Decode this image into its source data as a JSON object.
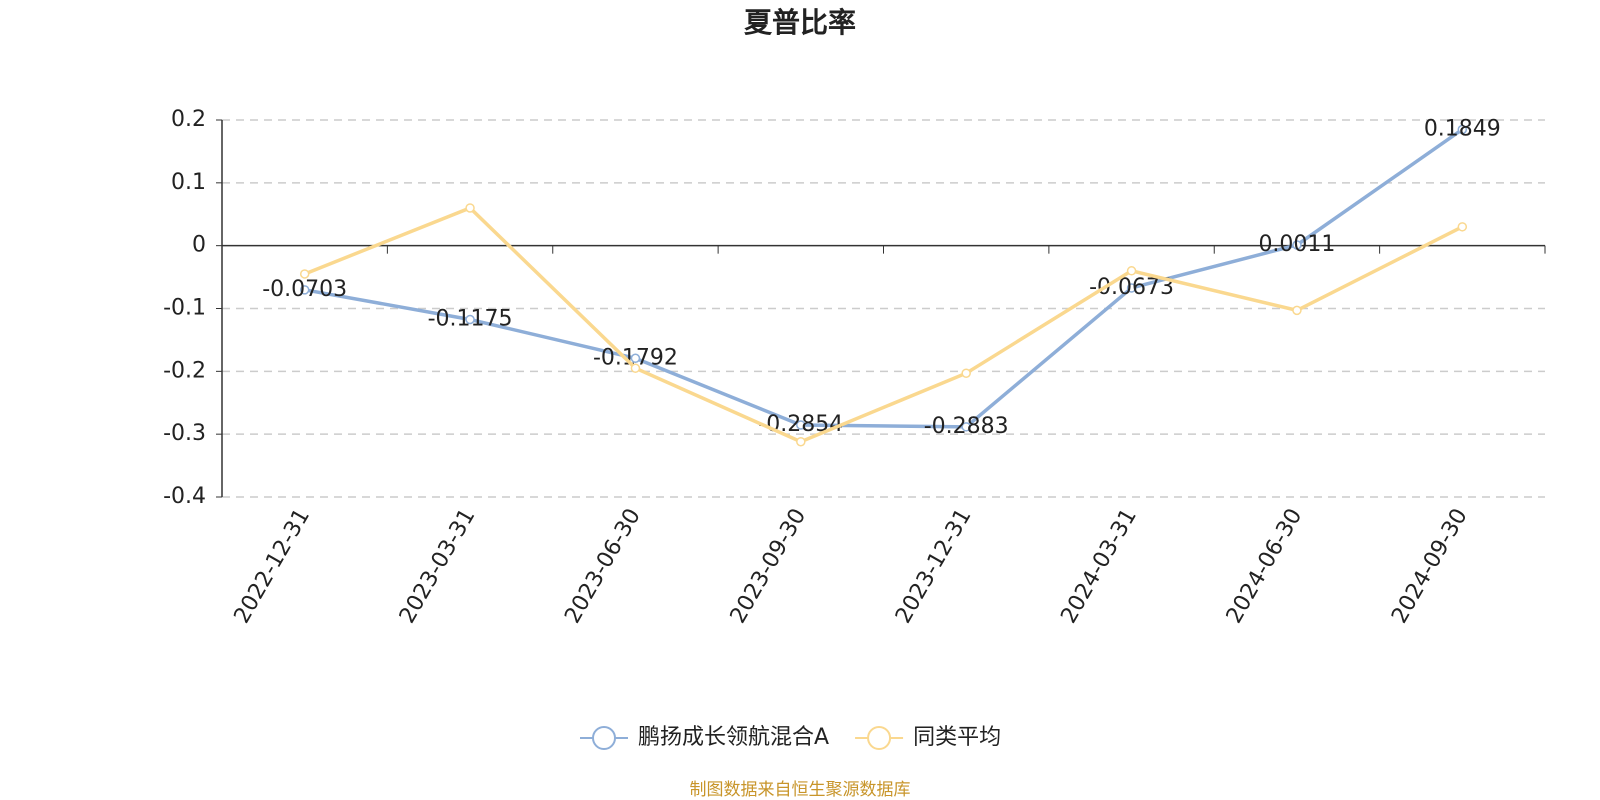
{
  "chart_data": {
    "type": "line",
    "title": "夏普比率",
    "categories": [
      "2022-12-31",
      "2023-03-31",
      "2023-06-30",
      "2023-09-30",
      "2023-12-31",
      "2024-03-31",
      "2024-06-30",
      "2024-09-30"
    ],
    "series": [
      {
        "name": "鹏扬成长领航混合A",
        "color": "#8eaed8",
        "values": [
          -0.0703,
          -0.1175,
          -0.1792,
          -0.2854,
          -0.2883,
          -0.0673,
          0.0011,
          0.1849
        ],
        "data_labels": true
      },
      {
        "name": "同类平均",
        "color": "#fad88f",
        "values": [
          -0.045,
          0.06,
          -0.195,
          -0.312,
          -0.203,
          -0.04,
          -0.103,
          0.03
        ],
        "data_labels": false
      }
    ],
    "ylim": [
      -0.4,
      0.2
    ],
    "yticks": [
      0.2,
      0.1,
      0,
      -0.1,
      -0.2,
      -0.3,
      -0.4
    ],
    "grid": true,
    "legend": "bottom",
    "source": "制图数据来自恒生聚源数据库"
  }
}
